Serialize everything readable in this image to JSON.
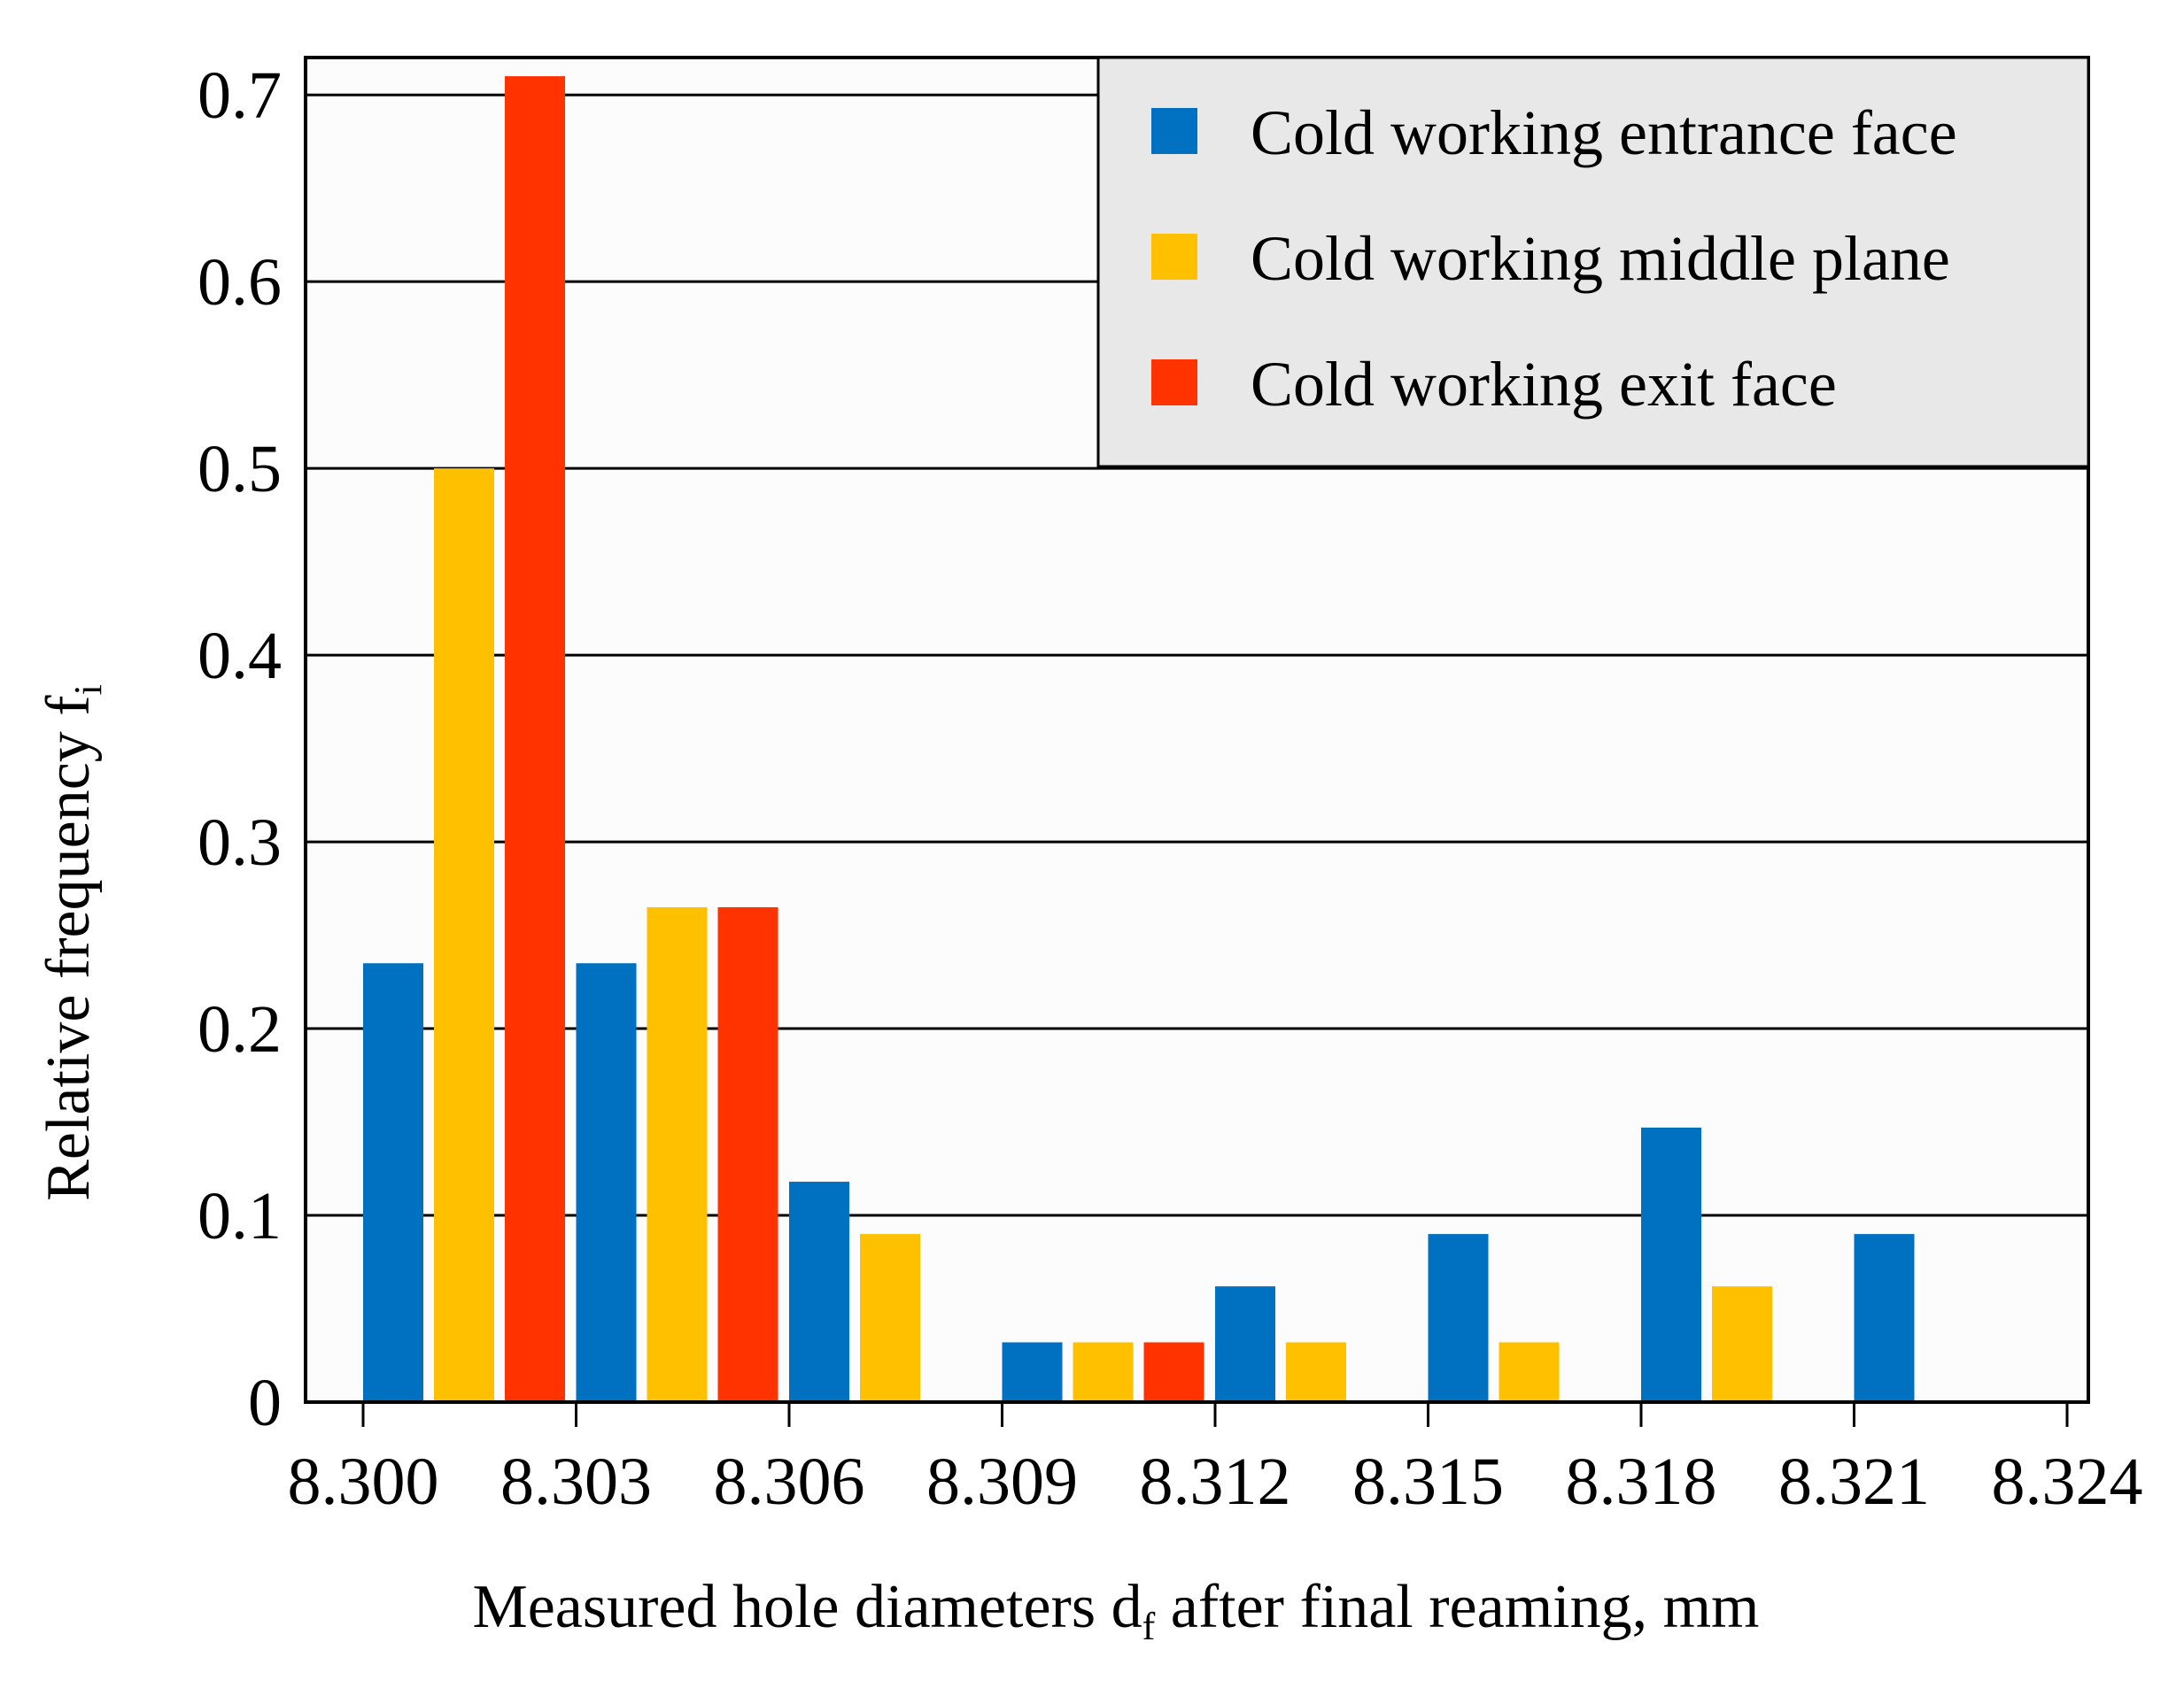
{
  "chart_data": {
    "type": "bar",
    "title": "",
    "xlabel": "Measured hole diameters d",
    "xlabel_sub": "f",
    "xlabel_suffix": " after final reaming, mm",
    "ylabel": "Relative frequency f",
    "ylabel_sub": "i",
    "ylim": [
      0,
      0.72
    ],
    "y_ticks": [
      "0",
      "0.1",
      "0.2",
      "0.3",
      "0.4",
      "0.5",
      "0.6",
      "0.7"
    ],
    "y_tick_values": [
      0,
      0.1,
      0.2,
      0.3,
      0.4,
      0.5,
      0.6,
      0.7
    ],
    "x_ticks": [
      "8.300",
      "8.303",
      "8.306",
      "8.309",
      "8.312",
      "8.315",
      "8.318",
      "8.321",
      "8.324"
    ],
    "categories": [
      "8.300–8.303",
      "8.303–8.306",
      "8.306–8.309",
      "8.309–8.312",
      "8.312–8.315",
      "8.315–8.318",
      "8.318–8.321",
      "8.321–8.324"
    ],
    "grid": true,
    "legend_position": "top-right",
    "series": [
      {
        "name": "Cold working entrance face",
        "color": "#0070C0",
        "values": [
          0.235,
          0.235,
          0.118,
          0.032,
          0.062,
          0.09,
          0.147,
          0.09
        ]
      },
      {
        "name": "Cold working middle plane",
        "color": "#FFC000",
        "values": [
          0.5,
          0.265,
          0.09,
          0.032,
          0.032,
          0.032,
          0.062,
          0
        ]
      },
      {
        "name": "Cold working exit face",
        "color": "#FF3300",
        "values": [
          0.71,
          0.265,
          0,
          0.032,
          0,
          0,
          0,
          0
        ]
      }
    ]
  }
}
